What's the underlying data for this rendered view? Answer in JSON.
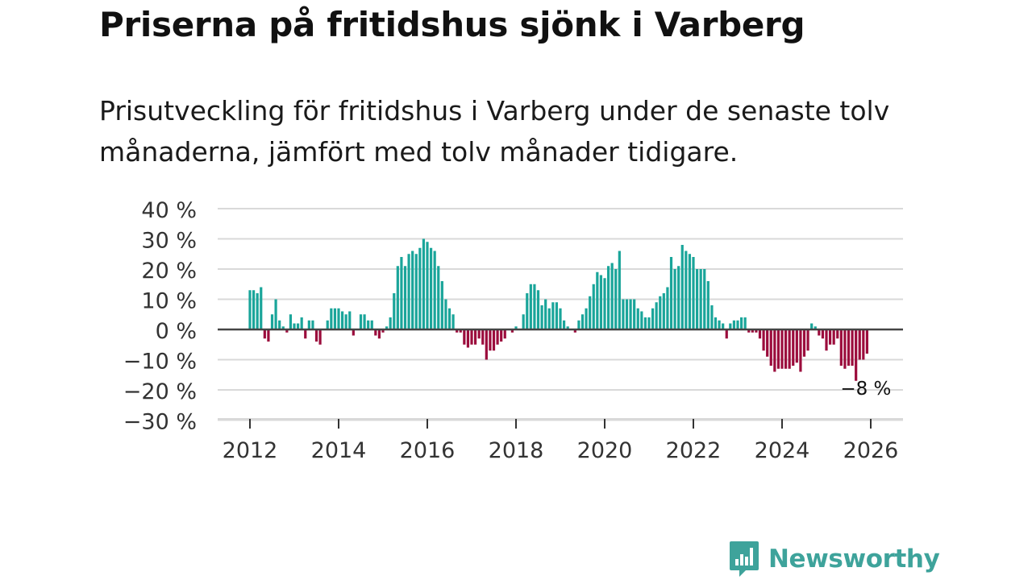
{
  "header": {
    "title": "Priserna på fritidshus sjönk i Varberg",
    "subtitle": "Prisutveckling för fritidshus i Varberg under de senaste tolv månaderna, jämfört med tolv månader tidigare."
  },
  "brand": {
    "name": "Newsworthy",
    "color": "#3ea39b"
  },
  "colors": {
    "positive": "#1aa59a",
    "negative": "#9b0c3c",
    "zero_line": "#444444",
    "grid": "#d9d9d9"
  },
  "chart_data": {
    "type": "bar",
    "title": "Priserna på fritidshus sjönk i Varberg",
    "xlabel": "",
    "ylabel": "",
    "ylim": [
      -30,
      40
    ],
    "y_ticks": [
      40,
      30,
      20,
      10,
      0,
      -10,
      -20,
      -30
    ],
    "y_tick_labels": [
      "40 %",
      "30 %",
      "20 %",
      "10 %",
      "0 %",
      "−10 %",
      "−20 %",
      "−30 %"
    ],
    "x_ticks": [
      2012,
      2014,
      2016,
      2018,
      2020,
      2022,
      2024,
      2026
    ],
    "x_tick_labels": [
      "2012",
      "2014",
      "2016",
      "2018",
      "2020",
      "2022",
      "2024",
      "2026"
    ],
    "start": "2012-01",
    "frequency": "monthly",
    "annotation": {
      "label": "−8 %",
      "date": "2025-12",
      "value": -8
    },
    "values": [
      13,
      13,
      12,
      14,
      -3,
      -4,
      5,
      10,
      3,
      1,
      -1,
      5,
      2,
      2,
      4,
      -3,
      3,
      3,
      -4,
      -5,
      0,
      3,
      7,
      7,
      7,
      6,
      5,
      6,
      -2,
      0,
      5,
      5,
      3,
      3,
      -2,
      -3,
      -1,
      1,
      4,
      12,
      21,
      24,
      21,
      25,
      26,
      25,
      27,
      30,
      29,
      27,
      26,
      21,
      16,
      10,
      7,
      5,
      -1,
      -1,
      -5,
      -6,
      -5,
      -5,
      -3,
      -5,
      -10,
      -7,
      -7,
      -5,
      -4,
      -3,
      0,
      -1,
      1,
      0,
      5,
      12,
      15,
      15,
      13,
      8,
      10,
      7,
      9,
      9,
      7,
      3,
      1,
      0,
      -1,
      3,
      5,
      7,
      11,
      15,
      19,
      18,
      17,
      21,
      22,
      20,
      26,
      10,
      10,
      10,
      10,
      7,
      6,
      4,
      4,
      7,
      9,
      11,
      12,
      14,
      24,
      20,
      21,
      28,
      26,
      25,
      24,
      20,
      20,
      20,
      16,
      8,
      4,
      3,
      2,
      -3,
      2,
      3,
      3,
      4,
      4,
      -1,
      -1,
      -1,
      -3,
      -7,
      -9,
      -12,
      -14,
      -13,
      -13,
      -13,
      -13,
      -12,
      -11,
      -14,
      -9,
      -7,
      2,
      1,
      -2,
      -3,
      -7,
      -5,
      -5,
      -3,
      -12,
      -13,
      -12,
      -12,
      -17,
      -10,
      -10,
      -8
    ]
  }
}
